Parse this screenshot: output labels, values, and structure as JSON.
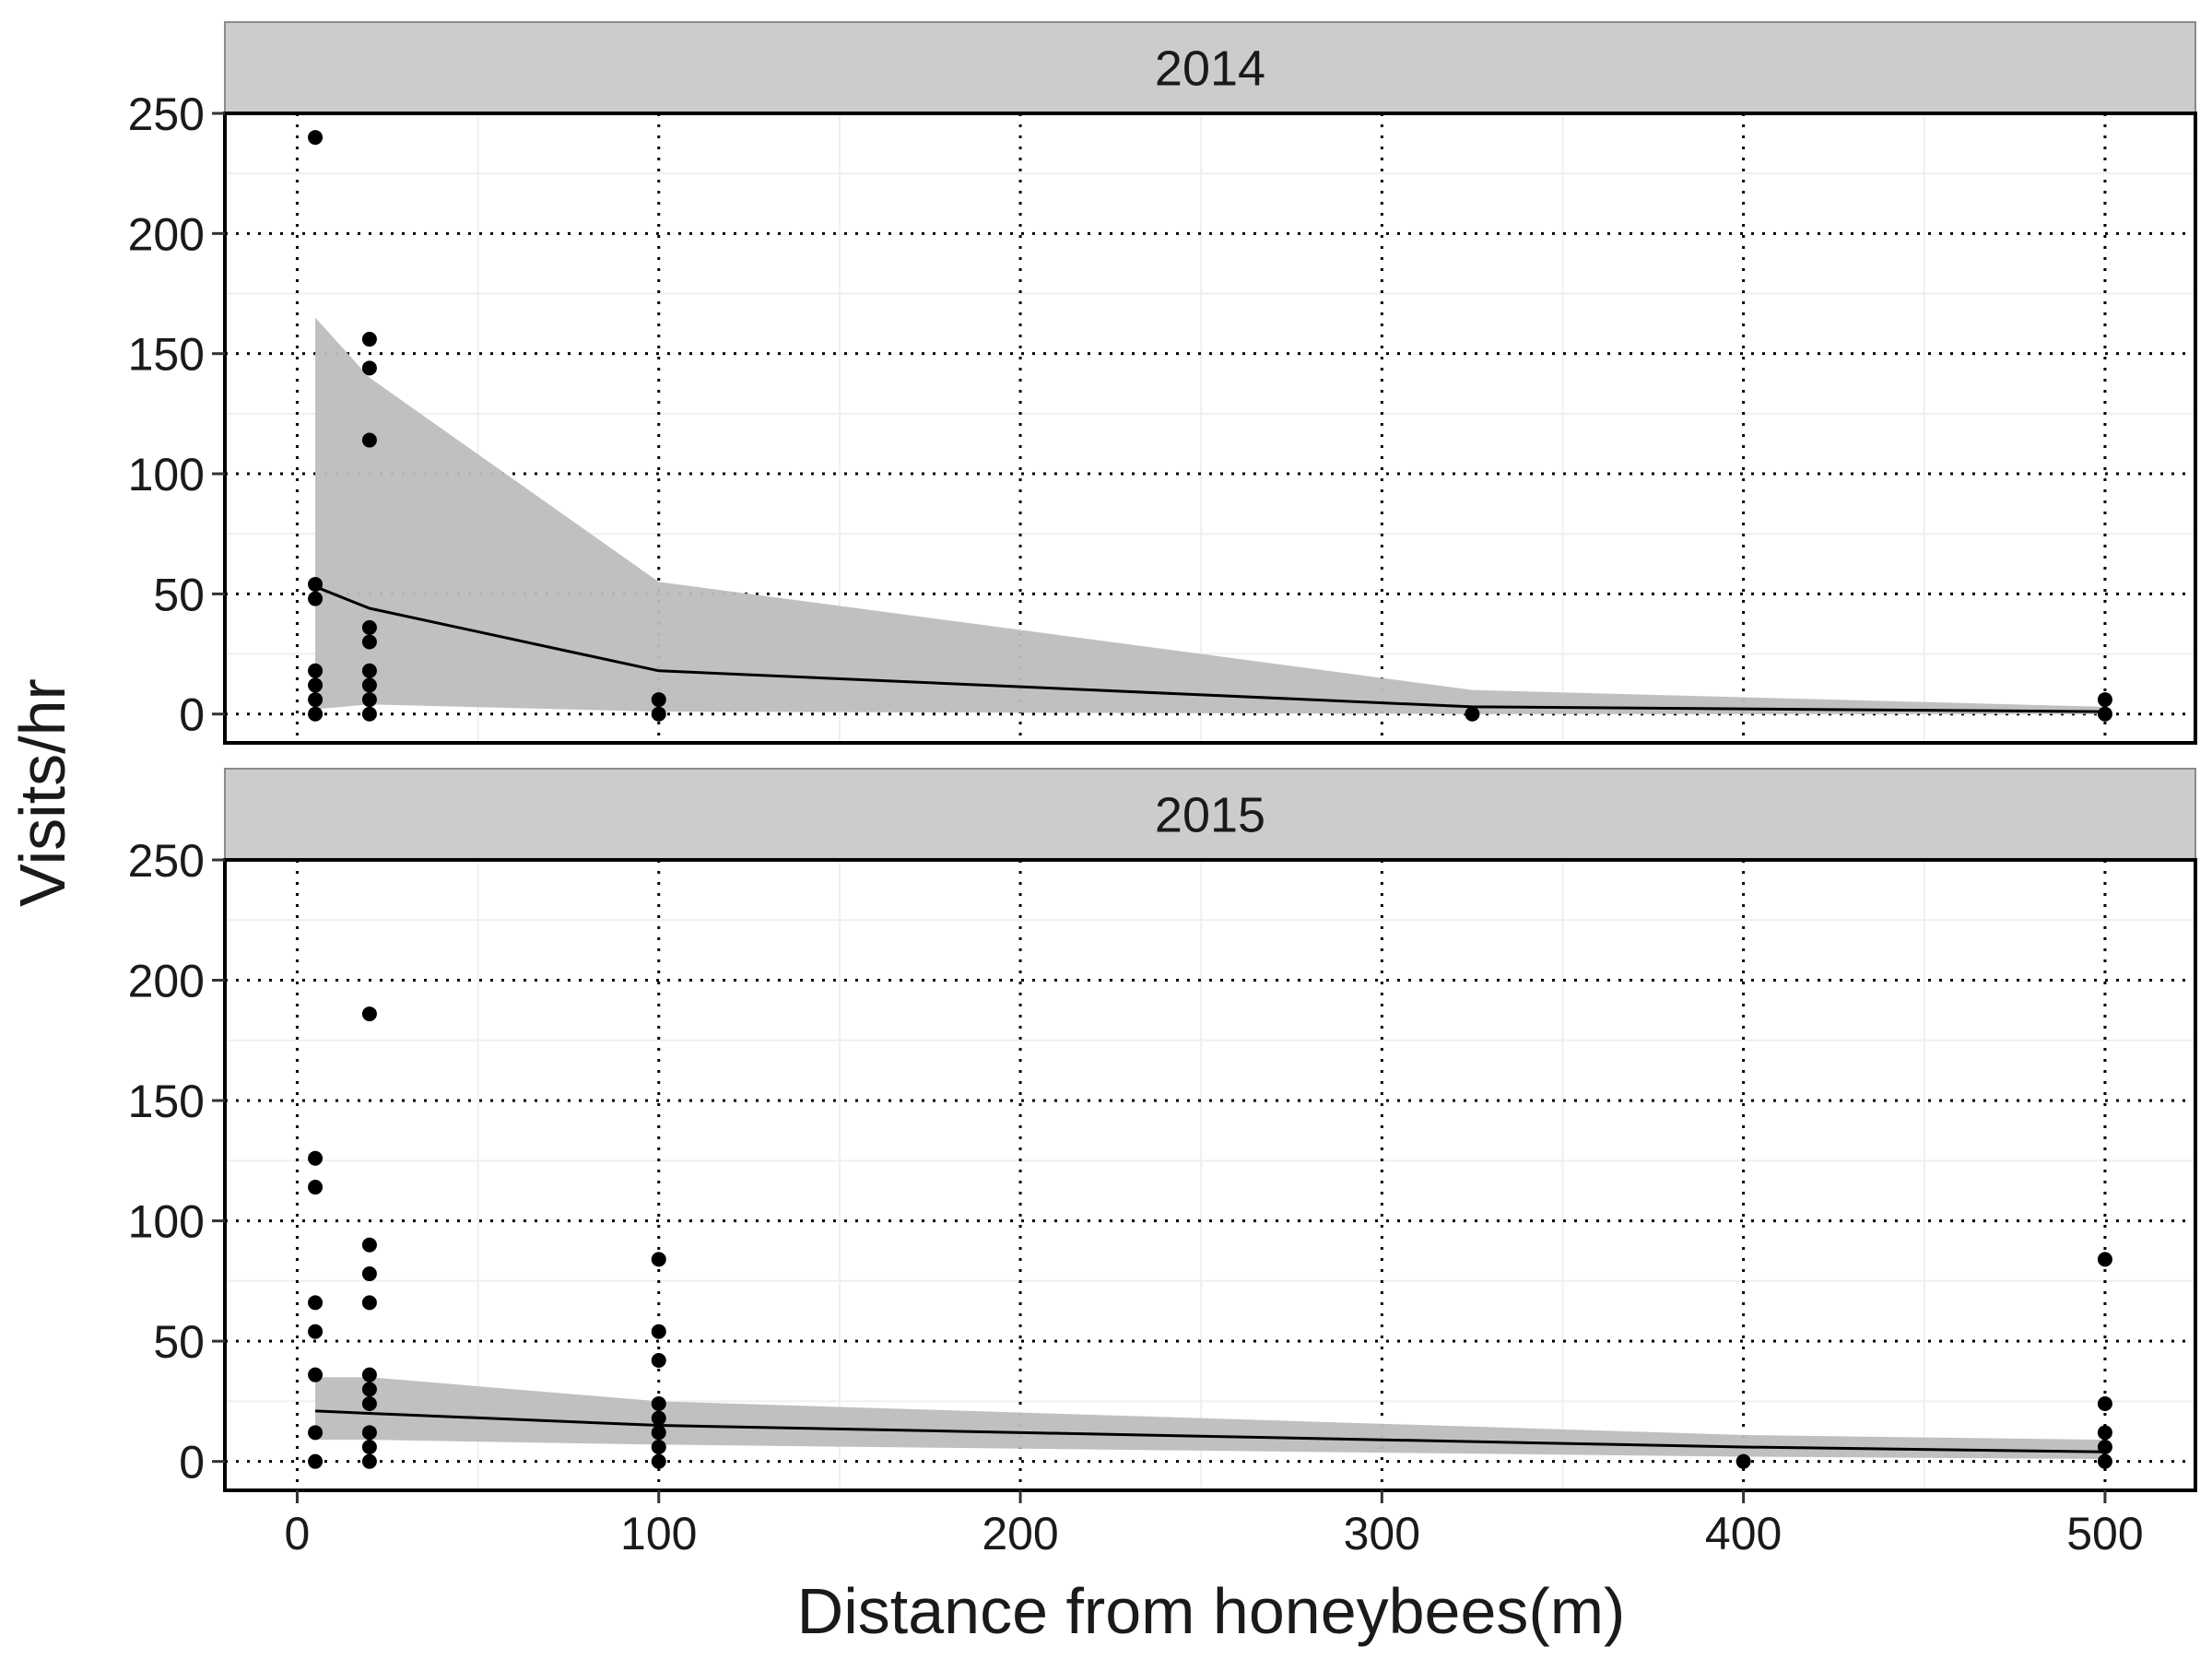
{
  "chart_data": {
    "type": "scatter",
    "xlabel": "Distance from honeybees(m)",
    "ylabel": "Visits/hr",
    "xlim": [
      -20,
      525
    ],
    "ylim": [
      -12,
      250
    ],
    "x_ticks": [
      0,
      100,
      200,
      300,
      400,
      500
    ],
    "y_ticks": [
      0,
      50,
      100,
      150,
      200,
      250
    ],
    "grid": true,
    "panels": [
      {
        "strip": "2014",
        "points": [
          [
            5,
            240
          ],
          [
            5,
            54
          ],
          [
            5,
            48
          ],
          [
            5,
            18
          ],
          [
            5,
            12
          ],
          [
            5,
            6
          ],
          [
            5,
            0
          ],
          [
            20,
            156
          ],
          [
            20,
            144
          ],
          [
            20,
            114
          ],
          [
            20,
            36
          ],
          [
            20,
            30
          ],
          [
            20,
            18
          ],
          [
            20,
            12
          ],
          [
            20,
            6
          ],
          [
            20,
            0
          ],
          [
            100,
            6
          ],
          [
            100,
            0
          ],
          [
            325,
            0
          ],
          [
            500,
            6
          ],
          [
            500,
            0
          ]
        ],
        "trend": [
          [
            5,
            53
          ],
          [
            20,
            44
          ],
          [
            100,
            18
          ],
          [
            325,
            3
          ],
          [
            500,
            1
          ]
        ],
        "band_upper": [
          [
            5,
            165
          ],
          [
            20,
            140
          ],
          [
            100,
            55
          ],
          [
            325,
            10
          ],
          [
            500,
            3
          ]
        ],
        "band_lower": [
          [
            5,
            2
          ],
          [
            20,
            4
          ],
          [
            100,
            1
          ],
          [
            325,
            0
          ],
          [
            500,
            0
          ]
        ]
      },
      {
        "strip": "2015",
        "points": [
          [
            5,
            126
          ],
          [
            5,
            114
          ],
          [
            5,
            66
          ],
          [
            5,
            54
          ],
          [
            5,
            36
          ],
          [
            5,
            12
          ],
          [
            5,
            0
          ],
          [
            20,
            186
          ],
          [
            20,
            90
          ],
          [
            20,
            78
          ],
          [
            20,
            66
          ],
          [
            20,
            36
          ],
          [
            20,
            30
          ],
          [
            20,
            24
          ],
          [
            20,
            12
          ],
          [
            20,
            6
          ],
          [
            20,
            0
          ],
          [
            100,
            84
          ],
          [
            100,
            54
          ],
          [
            100,
            42
          ],
          [
            100,
            24
          ],
          [
            100,
            18
          ],
          [
            100,
            12
          ],
          [
            100,
            6
          ],
          [
            100,
            0
          ],
          [
            400,
            0
          ],
          [
            500,
            84
          ],
          [
            500,
            24
          ],
          [
            500,
            12
          ],
          [
            500,
            6
          ],
          [
            500,
            0
          ]
        ],
        "trend": [
          [
            5,
            21
          ],
          [
            20,
            20
          ],
          [
            100,
            15
          ],
          [
            400,
            6
          ],
          [
            500,
            4
          ]
        ],
        "band_upper": [
          [
            5,
            35
          ],
          [
            20,
            35
          ],
          [
            100,
            25
          ],
          [
            400,
            11
          ],
          [
            500,
            9
          ]
        ],
        "band_lower": [
          [
            5,
            9
          ],
          [
            20,
            9
          ],
          [
            100,
            7
          ],
          [
            400,
            2
          ],
          [
            500,
            1
          ]
        ]
      }
    ]
  }
}
